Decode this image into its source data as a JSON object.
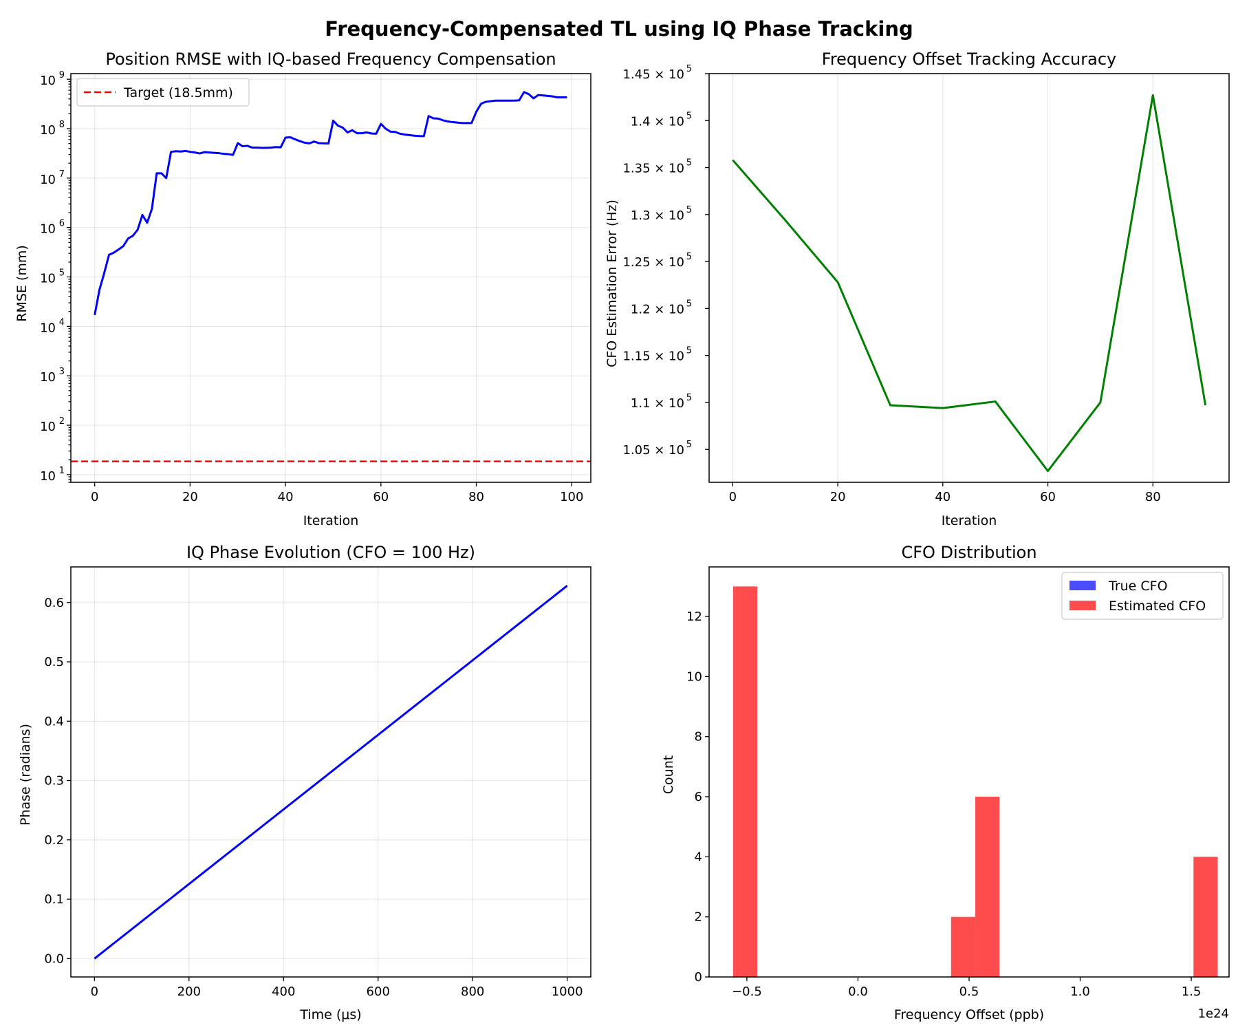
{
  "figure": {
    "title": "Frequency-Compensated TL using IQ Phase Tracking"
  },
  "chart_data": [
    {
      "type": "line",
      "title": "Position RMSE with IQ-based Frequency Compensation",
      "xlabel": "Iteration",
      "ylabel": "RMSE (mm)",
      "yscale": "log",
      "xlim": [
        -5,
        104
      ],
      "ylim": [
        7,
        1300000000
      ],
      "grid": true,
      "x_ticks": [
        "0",
        "20",
        "40",
        "60",
        "80",
        "100"
      ],
      "y_ticks": [
        "10",
        "10",
        "10",
        "10",
        "10",
        "10",
        "10",
        "10",
        "10"
      ],
      "y_tick_exponents": [
        "1",
        "2",
        "3",
        "4",
        "5",
        "6",
        "7",
        "8",
        "9"
      ],
      "legend_placement": "upper-left",
      "series": [
        {
          "color": "#0000ff",
          "x": [
            0,
            1,
            2,
            3,
            4,
            5,
            6,
            7,
            8,
            9,
            10,
            11,
            12,
            13,
            14,
            15,
            16,
            17,
            18,
            19,
            20,
            21,
            22,
            23,
            24,
            25,
            26,
            27,
            28,
            29,
            30,
            31,
            32,
            33,
            34,
            35,
            36,
            37,
            38,
            39,
            40,
            41,
            42,
            43,
            44,
            45,
            46,
            47,
            48,
            49,
            50,
            51,
            52,
            53,
            54,
            55,
            56,
            57,
            58,
            59,
            60,
            61,
            62,
            63,
            64,
            65,
            66,
            67,
            68,
            69,
            70,
            71,
            72,
            73,
            74,
            75,
            76,
            77,
            78,
            79,
            80,
            81,
            82,
            83,
            84,
            85,
            86,
            87,
            88,
            89,
            90,
            91,
            92,
            93,
            94,
            95,
            96,
            97,
            98,
            99
          ],
          "y": [
            17000,
            55000,
            120000,
            280000,
            310000,
            360000,
            420000,
            600000,
            680000,
            900000,
            1800000,
            1250000,
            2400000,
            12500000,
            12500000,
            10000000,
            34000000,
            35000000,
            34500000,
            35500000,
            34000000,
            33000000,
            31500000,
            33500000,
            33000000,
            32500000,
            32000000,
            31000000,
            30500000,
            29500000,
            51000000,
            44000000,
            45000000,
            41500000,
            41500000,
            41000000,
            41000000,
            41500000,
            42500000,
            42000000,
            66000000,
            67000000,
            61000000,
            56000000,
            52000000,
            50500000,
            55000000,
            51000000,
            50500000,
            50000000,
            145000000,
            115000000,
            105000000,
            84000000,
            93000000,
            81000000,
            81000000,
            84000000,
            80000000,
            79000000,
            125000000,
            100000000,
            87000000,
            86000000,
            79000000,
            76000000,
            74000000,
            72000000,
            71000000,
            70500000,
            180000000,
            162000000,
            160000000,
            148000000,
            140000000,
            136000000,
            133000000,
            130000000,
            130000000,
            130000000,
            220000000,
            320000000,
            350000000,
            360000000,
            370000000,
            370000000,
            370000000,
            370000000,
            370000000,
            375000000,
            550000000,
            500000000,
            410000000,
            480000000,
            470000000,
            460000000,
            450000000,
            430000000,
            430000000,
            430000000
          ]
        },
        {
          "name": "Target (18.5mm)",
          "color": "#ff0000",
          "style": "dashed",
          "y_constant": 18.5
        }
      ]
    },
    {
      "type": "line",
      "title": "Frequency Offset Tracking Accuracy",
      "xlabel": "Iteration",
      "ylabel": "CFO Estimation Error (Hz)",
      "xlim": [
        -4.5,
        94.5
      ],
      "ylim": [
        101500,
        145000
      ],
      "grid": true,
      "x_ticks": [
        "0",
        "20",
        "40",
        "60",
        "80"
      ],
      "y_tick_values": [
        105000,
        110000,
        115000,
        120000,
        125000,
        130000,
        135000,
        140000,
        145000
      ],
      "y_tick_mantissas": [
        "1.05",
        "1.1",
        "1.15",
        "1.2",
        "1.25",
        "1.3",
        "1.35",
        "1.4",
        "1.45"
      ],
      "y_tick_exponent": "5",
      "series": [
        {
          "color": "#008000",
          "x": [
            0,
            10,
            20,
            30,
            40,
            50,
            60,
            70,
            80,
            90
          ],
          "y": [
            135800,
            129400,
            122800,
            109700,
            109400,
            110100,
            102700,
            110000,
            142700,
            109700
          ]
        }
      ]
    },
    {
      "type": "line",
      "title": "IQ Phase Evolution (CFO = 100 Hz)",
      "xlabel": "Time (μs)",
      "ylabel": "Phase (radians)",
      "xlim": [
        -50,
        1050
      ],
      "ylim": [
        -0.031,
        0.66
      ],
      "grid": true,
      "x_ticks": [
        "0",
        "200",
        "400",
        "600",
        "800",
        "1000"
      ],
      "y_ticks": [
        "0.0",
        "0.1",
        "0.2",
        "0.3",
        "0.4",
        "0.5",
        "0.6"
      ],
      "series": [
        {
          "color": "#0000ff",
          "x": [
            0,
            1000
          ],
          "y": [
            0,
            0.6283
          ]
        }
      ]
    },
    {
      "type": "bar",
      "title": "CFO Distribution",
      "xlabel": "Frequency Offset (ppb)",
      "ylabel": "Count",
      "x_offset_text": "1e24",
      "xlim": [
        -0.67,
        1.67
      ],
      "ylim": [
        0,
        13.65
      ],
      "grid": false,
      "x_ticks": [
        "−0.5",
        "0.0",
        "0.5",
        "1.0",
        "1.5"
      ],
      "y_ticks": [
        "0",
        "2",
        "4",
        "6",
        "8",
        "10",
        "12"
      ],
      "legend_placement": "upper-right",
      "series": [
        {
          "name": "True CFO",
          "color": "#0000ff",
          "bins": []
        },
        {
          "name": "Estimated CFO",
          "color": "#ff0000",
          "bins": [
            {
              "left": -0.562,
              "right": -0.453,
              "count": 13
            },
            {
              "left": 0.419,
              "right": 0.528,
              "count": 2
            },
            {
              "left": 0.528,
              "right": 0.637,
              "count": 6
            },
            {
              "left": 1.51,
              "right": 1.619,
              "count": 4
            }
          ]
        }
      ]
    }
  ]
}
